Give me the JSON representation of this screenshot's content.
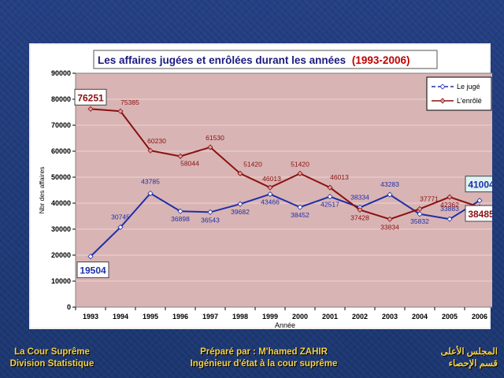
{
  "chart_data": {
    "type": "line",
    "title": "Les affaires jugées et enrôlées durant les années",
    "title_years": "(1993-2006)",
    "ylabel": "Nbr des affaires",
    "xlabel": "Année",
    "x": [
      "1993",
      "1994",
      "1995",
      "1996",
      "1997",
      "1998",
      "1999",
      "2000",
      "2001",
      "2002",
      "2003",
      "2004",
      "2005",
      "2006"
    ],
    "ylim": [
      0,
      90000
    ],
    "yticks": [
      "0",
      "10000",
      "20000",
      "30000",
      "40000",
      "50000",
      "60000",
      "70000",
      "80000",
      "90000"
    ],
    "grid": true,
    "legend_position": "top-right",
    "series": [
      {
        "name": "Le jugé",
        "color": "#1f2fa8",
        "values": [
          19504,
          30745,
          43785,
          36898,
          36543,
          39682,
          43466,
          38452,
          42517,
          38334,
          43283,
          35832,
          33883,
          41004
        ],
        "labels": [
          "19504",
          "30745",
          "43785",
          "36898",
          "36543",
          "39682",
          "43466",
          "38452",
          "42517",
          "38334",
          "43283",
          "35832",
          "33883",
          "41004"
        ]
      },
      {
        "name": "L'enrôlé",
        "color": "#8b1010",
        "values": [
          76251,
          75385,
          60230,
          58044,
          61530,
          51420,
          46013,
          51420,
          46013,
          37428,
          33834,
          37771,
          42362,
          38485
        ],
        "labels": [
          "76251",
          "75385",
          "60230",
          "58044",
          "61530",
          "51420",
          "46013",
          "51420",
          "46013",
          "37428",
          "33834",
          "37771",
          "42362",
          "38485"
        ]
      }
    ]
  },
  "colors": {
    "plot_background": "#d9b4b4",
    "slide_background": "#1e3a78",
    "title_text": "#1a1a80",
    "title_years": "#c00000",
    "footer_text": "#f5d24a"
  },
  "footer": {
    "left_line1": "La Cour Suprême",
    "left_line2": "Division Statistique",
    "center_line1": "Préparé par : M'hamed ZAHIR",
    "center_line2": "Ingénieur d'état à la cour suprême",
    "right_line1": "المجلس الأعلى",
    "right_line2": "قسم الإحصاء"
  }
}
